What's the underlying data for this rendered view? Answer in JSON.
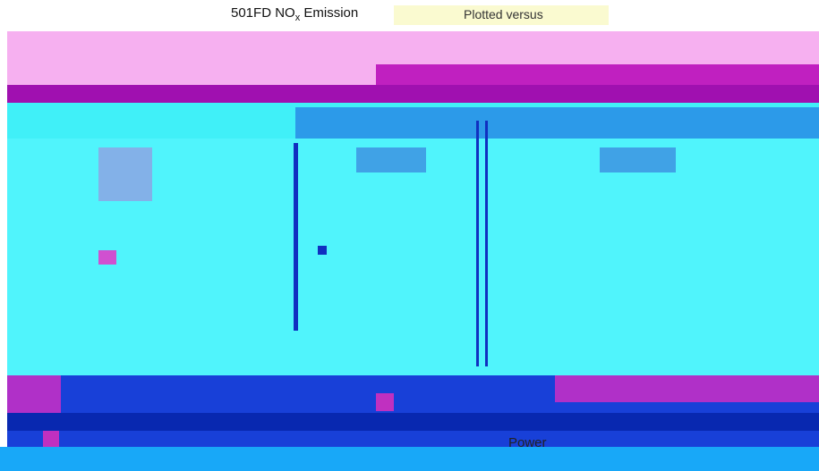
{
  "header": {
    "title_main": "501FD NO",
    "title_subscript": "x",
    "title_emission": "Emission",
    "title_partial": "Plotted versus"
  },
  "footer": {
    "axis_label_partial": "Power"
  }
}
